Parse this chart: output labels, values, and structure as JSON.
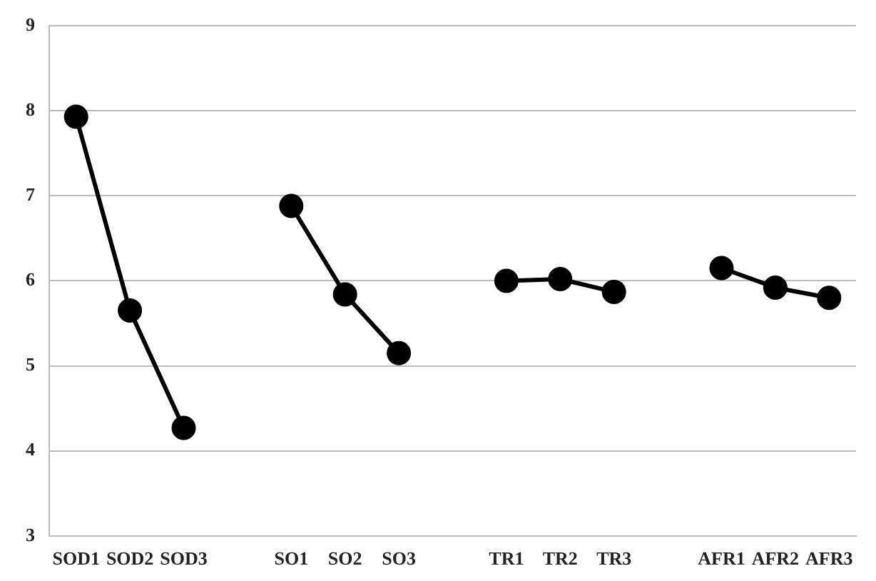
{
  "chart_data": {
    "type": "line",
    "categories": [
      "SOD1",
      "SOD2",
      "SOD3",
      null,
      "SO1",
      "SO2",
      "SO3",
      null,
      "TR1",
      "TR2",
      "TR3",
      null,
      "AFR1",
      "AFR2",
      "AFR3"
    ],
    "series": [
      {
        "color": "#000000",
        "values": [
          7.93,
          5.65,
          4.27,
          null,
          6.88,
          5.84,
          5.15,
          null,
          6.0,
          6.02,
          5.87,
          null,
          6.15,
          5.92,
          5.8
        ]
      }
    ],
    "ylim": [
      3,
      9
    ],
    "yticks": [
      3,
      4,
      5,
      6,
      7,
      8,
      9
    ],
    "grid": "y",
    "legend": false,
    "marker": "circle",
    "line_style": "solid"
  }
}
